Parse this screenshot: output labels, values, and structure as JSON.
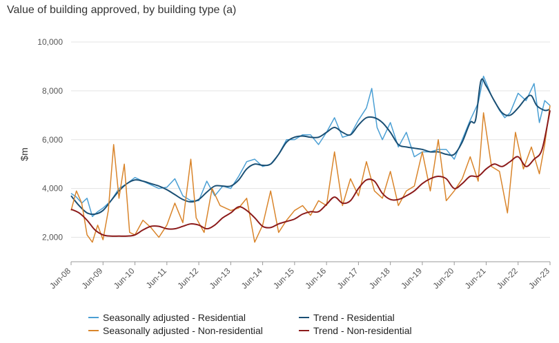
{
  "chart_data": {
    "type": "line",
    "title": "Value of building approved, by building type (a)",
    "ylabel": "$m",
    "xlabel": "",
    "ylim": [
      1000,
      10000
    ],
    "yticks": [
      2000,
      4000,
      6000,
      8000,
      10000
    ],
    "ytick_labels": [
      "2,000",
      "4,000",
      "6,000",
      "8,000",
      "10,000"
    ],
    "xlim": [
      "2008-06",
      "2023-06"
    ],
    "xticks": [
      "2008-06",
      "2009-06",
      "2010-06",
      "2011-06",
      "2012-06",
      "2013-06",
      "2014-06",
      "2015-06",
      "2016-06",
      "2017-06",
      "2018-06",
      "2019-06",
      "2020-06",
      "2021-06",
      "2022-06",
      "2023-06"
    ],
    "xtick_labels": [
      "Jun-08",
      "Jun-09",
      "Jun-10",
      "Jun-11",
      "Jun-12",
      "Jun-13",
      "Jun-14",
      "Jun-15",
      "Jun-16",
      "Jun-17",
      "Jun-18",
      "Jun-19",
      "Jun-20",
      "Jun-21",
      "Jun-22",
      "Jun-23"
    ],
    "grid": "horizontal",
    "legend_position": "bottom",
    "series": [
      {
        "name": "Seasonally adjusted - Residential",
        "color": "#4a9fd4",
        "width": 1.5,
        "points": [
          [
            "2008-06",
            3800
          ],
          [
            "2008-08",
            3650
          ],
          [
            "2008-10",
            3400
          ],
          [
            "2008-12",
            3600
          ],
          [
            "2009-02",
            2850
          ],
          [
            "2009-04",
            3050
          ],
          [
            "2009-06",
            3200
          ],
          [
            "2009-09",
            3500
          ],
          [
            "2009-12",
            4000
          ],
          [
            "2010-03",
            4200
          ],
          [
            "2010-06",
            4450
          ],
          [
            "2010-09",
            4300
          ],
          [
            "2010-12",
            4150
          ],
          [
            "2011-03",
            4000
          ],
          [
            "2011-06",
            4050
          ],
          [
            "2011-09",
            4400
          ],
          [
            "2011-12",
            3700
          ],
          [
            "2012-03",
            3500
          ],
          [
            "2012-06",
            3500
          ],
          [
            "2012-09",
            4300
          ],
          [
            "2012-12",
            3700
          ],
          [
            "2013-03",
            4100
          ],
          [
            "2013-06",
            4000
          ],
          [
            "2013-09",
            4500
          ],
          [
            "2013-12",
            5100
          ],
          [
            "2014-03",
            5200
          ],
          [
            "2014-06",
            4900
          ],
          [
            "2014-09",
            5000
          ],
          [
            "2014-12",
            5400
          ],
          [
            "2015-03",
            6000
          ],
          [
            "2015-06",
            6000
          ],
          [
            "2015-09",
            6200
          ],
          [
            "2015-12",
            6200
          ],
          [
            "2016-03",
            5800
          ],
          [
            "2016-06",
            6300
          ],
          [
            "2016-09",
            6900
          ],
          [
            "2016-12",
            6100
          ],
          [
            "2017-03",
            6200
          ],
          [
            "2017-06",
            6800
          ],
          [
            "2017-09",
            7300
          ],
          [
            "2017-11",
            8100
          ],
          [
            "2018-01",
            6500
          ],
          [
            "2018-03",
            6000
          ],
          [
            "2018-06",
            6700
          ],
          [
            "2018-09",
            5700
          ],
          [
            "2018-12",
            6300
          ],
          [
            "2019-03",
            5300
          ],
          [
            "2019-06",
            5500
          ],
          [
            "2019-09",
            5500
          ],
          [
            "2019-12",
            5600
          ],
          [
            "2020-03",
            5600
          ],
          [
            "2020-06",
            5200
          ],
          [
            "2020-09",
            6000
          ],
          [
            "2020-12",
            6800
          ],
          [
            "2021-03",
            7500
          ],
          [
            "2021-05",
            8600
          ],
          [
            "2021-08",
            7800
          ],
          [
            "2021-11",
            7200
          ],
          [
            "2022-01",
            6900
          ],
          [
            "2022-03",
            7100
          ],
          [
            "2022-06",
            7900
          ],
          [
            "2022-09",
            7600
          ],
          [
            "2022-12",
            8300
          ],
          [
            "2023-02",
            6700
          ],
          [
            "2023-04",
            7600
          ],
          [
            "2023-06",
            7400
          ]
        ]
      },
      {
        "name": "Trend - Residential",
        "color": "#1a4f74",
        "width": 2,
        "points": [
          [
            "2008-06",
            3700
          ],
          [
            "2008-09",
            3300
          ],
          [
            "2008-12",
            3000
          ],
          [
            "2009-03",
            2950
          ],
          [
            "2009-06",
            3100
          ],
          [
            "2009-09",
            3500
          ],
          [
            "2009-12",
            3900
          ],
          [
            "2010-03",
            4200
          ],
          [
            "2010-06",
            4350
          ],
          [
            "2010-09",
            4300
          ],
          [
            "2010-12",
            4200
          ],
          [
            "2011-03",
            4100
          ],
          [
            "2011-06",
            3950
          ],
          [
            "2011-09",
            3750
          ],
          [
            "2011-12",
            3550
          ],
          [
            "2012-03",
            3450
          ],
          [
            "2012-06",
            3550
          ],
          [
            "2012-09",
            3850
          ],
          [
            "2012-12",
            4100
          ],
          [
            "2013-03",
            4100
          ],
          [
            "2013-06",
            4100
          ],
          [
            "2013-09",
            4350
          ],
          [
            "2013-12",
            4800
          ],
          [
            "2014-03",
            5000
          ],
          [
            "2014-06",
            4950
          ],
          [
            "2014-09",
            5000
          ],
          [
            "2014-12",
            5400
          ],
          [
            "2015-03",
            5900
          ],
          [
            "2015-06",
            6100
          ],
          [
            "2015-09",
            6150
          ],
          [
            "2015-12",
            6100
          ],
          [
            "2016-03",
            6100
          ],
          [
            "2016-06",
            6300
          ],
          [
            "2016-09",
            6500
          ],
          [
            "2016-12",
            6300
          ],
          [
            "2017-03",
            6200
          ],
          [
            "2017-06",
            6600
          ],
          [
            "2017-09",
            6900
          ],
          [
            "2017-12",
            6900
          ],
          [
            "2018-03",
            6700
          ],
          [
            "2018-06",
            6300
          ],
          [
            "2018-09",
            5800
          ],
          [
            "2018-12",
            5700
          ],
          [
            "2019-03",
            5650
          ],
          [
            "2019-06",
            5600
          ],
          [
            "2019-09",
            5500
          ],
          [
            "2019-12",
            5500
          ],
          [
            "2020-03",
            5400
          ],
          [
            "2020-06",
            5400
          ],
          [
            "2020-09",
            5900
          ],
          [
            "2020-12",
            6700
          ],
          [
            "2021-02",
            6800
          ],
          [
            "2021-04",
            8400
          ],
          [
            "2021-06",
            8200
          ],
          [
            "2021-09",
            7600
          ],
          [
            "2021-12",
            7100
          ],
          [
            "2022-03",
            7000
          ],
          [
            "2022-06",
            7300
          ],
          [
            "2022-09",
            7700
          ],
          [
            "2022-11",
            7800
          ],
          [
            "2023-01",
            7400
          ],
          [
            "2023-04",
            7200
          ],
          [
            "2023-06",
            7250
          ]
        ]
      },
      {
        "name": "Seasonally adjusted - Non-residential",
        "color": "#d9842a",
        "width": 1.5,
        "points": [
          [
            "2008-06",
            3100
          ],
          [
            "2008-08",
            3900
          ],
          [
            "2008-10",
            3400
          ],
          [
            "2008-12",
            2100
          ],
          [
            "2009-02",
            1800
          ],
          [
            "2009-04",
            2500
          ],
          [
            "2009-06",
            1900
          ],
          [
            "2009-08",
            3100
          ],
          [
            "2009-10",
            5800
          ],
          [
            "2009-12",
            3600
          ],
          [
            "2010-02",
            5000
          ],
          [
            "2010-04",
            2200
          ],
          [
            "2010-06",
            2100
          ],
          [
            "2010-09",
            2700
          ],
          [
            "2010-12",
            2400
          ],
          [
            "2011-03",
            2000
          ],
          [
            "2011-06",
            2500
          ],
          [
            "2011-09",
            3400
          ],
          [
            "2011-12",
            2600
          ],
          [
            "2012-03",
            5200
          ],
          [
            "2012-05",
            2800
          ],
          [
            "2012-08",
            2200
          ],
          [
            "2012-11",
            4000
          ],
          [
            "2013-02",
            3300
          ],
          [
            "2013-06",
            3100
          ],
          [
            "2013-09",
            3200
          ],
          [
            "2013-12",
            3600
          ],
          [
            "2014-03",
            1800
          ],
          [
            "2014-06",
            2500
          ],
          [
            "2014-09",
            3900
          ],
          [
            "2014-12",
            2200
          ],
          [
            "2015-03",
            2700
          ],
          [
            "2015-06",
            3100
          ],
          [
            "2015-09",
            3300
          ],
          [
            "2015-12",
            2900
          ],
          [
            "2016-03",
            3500
          ],
          [
            "2016-06",
            3300
          ],
          [
            "2016-09",
            5500
          ],
          [
            "2016-12",
            3300
          ],
          [
            "2017-03",
            4400
          ],
          [
            "2017-06",
            3700
          ],
          [
            "2017-09",
            5100
          ],
          [
            "2017-12",
            3900
          ],
          [
            "2018-03",
            3600
          ],
          [
            "2018-06",
            4700
          ],
          [
            "2018-09",
            3300
          ],
          [
            "2018-12",
            3900
          ],
          [
            "2019-03",
            4100
          ],
          [
            "2019-06",
            5500
          ],
          [
            "2019-09",
            3900
          ],
          [
            "2019-12",
            6000
          ],
          [
            "2020-03",
            3500
          ],
          [
            "2020-06",
            3900
          ],
          [
            "2020-09",
            4400
          ],
          [
            "2020-12",
            5300
          ],
          [
            "2021-03",
            4300
          ],
          [
            "2021-05",
            7100
          ],
          [
            "2021-08",
            4900
          ],
          [
            "2021-11",
            4700
          ],
          [
            "2022-02",
            3000
          ],
          [
            "2022-05",
            6300
          ],
          [
            "2022-08",
            4800
          ],
          [
            "2022-11",
            5700
          ],
          [
            "2023-02",
            4600
          ],
          [
            "2023-04",
            5800
          ],
          [
            "2023-06",
            7400
          ]
        ]
      },
      {
        "name": "Trend - Non-residential",
        "color": "#8b1a1a",
        "width": 2,
        "points": [
          [
            "2008-06",
            3150
          ],
          [
            "2008-09",
            3000
          ],
          [
            "2008-12",
            2700
          ],
          [
            "2009-03",
            2300
          ],
          [
            "2009-06",
            2100
          ],
          [
            "2009-09",
            2050
          ],
          [
            "2009-12",
            2050
          ],
          [
            "2010-03",
            2050
          ],
          [
            "2010-06",
            2100
          ],
          [
            "2010-09",
            2300
          ],
          [
            "2010-12",
            2450
          ],
          [
            "2011-03",
            2450
          ],
          [
            "2011-06",
            2350
          ],
          [
            "2011-09",
            2350
          ],
          [
            "2011-12",
            2450
          ],
          [
            "2012-03",
            2550
          ],
          [
            "2012-06",
            2500
          ],
          [
            "2012-09",
            2350
          ],
          [
            "2012-12",
            2500
          ],
          [
            "2013-03",
            2800
          ],
          [
            "2013-06",
            3000
          ],
          [
            "2013-09",
            3250
          ],
          [
            "2013-12",
            3100
          ],
          [
            "2014-03",
            2800
          ],
          [
            "2014-06",
            2450
          ],
          [
            "2014-09",
            2400
          ],
          [
            "2014-12",
            2550
          ],
          [
            "2015-03",
            2650
          ],
          [
            "2015-06",
            2750
          ],
          [
            "2015-09",
            2950
          ],
          [
            "2015-12",
            3050
          ],
          [
            "2016-03",
            3050
          ],
          [
            "2016-06",
            3350
          ],
          [
            "2016-09",
            3650
          ],
          [
            "2016-12",
            3400
          ],
          [
            "2017-03",
            3500
          ],
          [
            "2017-06",
            4000
          ],
          [
            "2017-09",
            4350
          ],
          [
            "2017-12",
            4300
          ],
          [
            "2018-03",
            3800
          ],
          [
            "2018-06",
            3550
          ],
          [
            "2018-09",
            3550
          ],
          [
            "2018-12",
            3700
          ],
          [
            "2019-03",
            3900
          ],
          [
            "2019-06",
            4200
          ],
          [
            "2019-09",
            4400
          ],
          [
            "2019-12",
            4500
          ],
          [
            "2020-03",
            4400
          ],
          [
            "2020-06",
            4000
          ],
          [
            "2020-09",
            4200
          ],
          [
            "2020-12",
            4500
          ],
          [
            "2021-03",
            4500
          ],
          [
            "2021-06",
            4800
          ],
          [
            "2021-09",
            5000
          ],
          [
            "2021-12",
            4900
          ],
          [
            "2022-03",
            5100
          ],
          [
            "2022-06",
            5300
          ],
          [
            "2022-09",
            4900
          ],
          [
            "2022-12",
            5200
          ],
          [
            "2023-03",
            5600
          ],
          [
            "2023-06",
            7200
          ]
        ]
      }
    ],
    "legend_order": [
      0,
      1,
      2,
      3
    ]
  }
}
